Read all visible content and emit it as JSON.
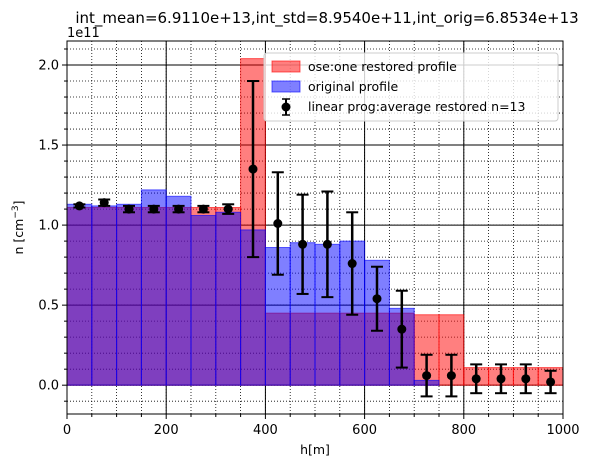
{
  "chart_data": {
    "type": "bar",
    "title": "int_mean=6.9110e+13,int_std=8.9540e+11,int_orig=6.8534e+13",
    "xlabel": "h[m]",
    "ylabel_main": "n [cm",
    "ylabel_sup": "−3",
    "ylabel_end": "]",
    "y_offset_label": "1e11",
    "xlim": [
      0,
      1000
    ],
    "ylim": [
      -0.18,
      2.15
    ],
    "y_scale": 100000000000.0,
    "bin_width": 50,
    "x_ticks": [
      0,
      200,
      400,
      600,
      800,
      1000
    ],
    "x_tick_labels": [
      "0",
      "200",
      "400",
      "600",
      "800",
      "1000"
    ],
    "y_ticks": [
      0.0,
      0.5,
      1.0,
      1.5,
      2.0
    ],
    "y_tick_labels": [
      "0.0",
      "0.5",
      "1.0",
      "1.5",
      "2.0"
    ],
    "grid": true,
    "legend_position": "top-right",
    "colors": {
      "restored": "#ff0000",
      "original": "#0000ff",
      "points": "#000000"
    },
    "series": [
      {
        "name": "ose:one restored profile",
        "style": "bar",
        "x": [
          25,
          75,
          125,
          175,
          225,
          275,
          325,
          375,
          425,
          475,
          525,
          575,
          625,
          675,
          725,
          775,
          825,
          875,
          925,
          975
        ],
        "values": [
          1.11,
          1.11,
          1.11,
          1.11,
          1.11,
          1.11,
          1.11,
          2.04,
          0.45,
          0.45,
          0.45,
          0.45,
          0.45,
          0.45,
          0.44,
          0.44,
          0.11,
          0.11,
          0.11,
          0.11
        ]
      },
      {
        "name": "original profile",
        "style": "bar",
        "x": [
          25,
          75,
          125,
          175,
          225,
          275,
          325,
          375,
          425,
          475,
          525,
          575,
          625,
          675,
          725,
          775,
          825,
          875,
          925,
          975
        ],
        "values": [
          1.13,
          1.12,
          1.13,
          1.22,
          1.18,
          1.06,
          1.08,
          0.97,
          0.86,
          0.89,
          0.88,
          0.9,
          0.78,
          0.48,
          0.03,
          0.0,
          0.0,
          0.0,
          0.0,
          0.0
        ]
      },
      {
        "name": "linear prog:average restored n=13",
        "style": "errorbar",
        "x": [
          25,
          75,
          125,
          175,
          225,
          275,
          325,
          375,
          425,
          475,
          525,
          575,
          625,
          675,
          725,
          775,
          825,
          875,
          925,
          975
        ],
        "values": [
          1.12,
          1.14,
          1.1,
          1.1,
          1.1,
          1.1,
          1.1,
          1.35,
          1.01,
          0.88,
          0.88,
          0.76,
          0.54,
          0.35,
          0.06,
          0.06,
          0.04,
          0.04,
          0.04,
          0.02
        ],
        "errors": [
          0.01,
          0.02,
          0.02,
          0.02,
          0.02,
          0.02,
          0.03,
          0.55,
          0.32,
          0.31,
          0.33,
          0.32,
          0.2,
          0.24,
          0.13,
          0.13,
          0.09,
          0.09,
          0.09,
          0.07
        ]
      }
    ]
  }
}
